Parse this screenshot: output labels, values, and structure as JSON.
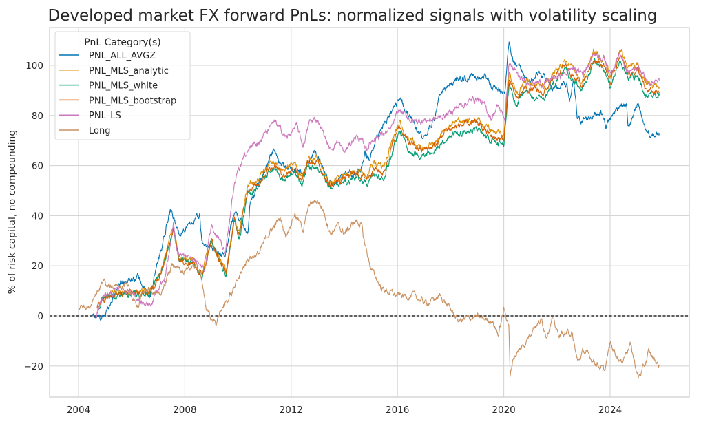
{
  "chart_data": {
    "type": "line",
    "title": "Developed market FX forward PnLs: normalized signals with volatility scaling",
    "xlabel": "",
    "ylabel": "% of risk capital, no compounding",
    "xlim": [
      2002.9,
      2027.0
    ],
    "ylim": [
      -32,
      116
    ],
    "x_ticks": [
      "2004",
      "2008",
      "2012",
      "2016",
      "2020",
      "2024"
    ],
    "y_ticks": [
      "−20",
      "0",
      "20",
      "40",
      "60",
      "80",
      "100"
    ],
    "grid": true,
    "reference_line": {
      "y": 0,
      "style": "dashed",
      "color": "#000000"
    },
    "legend": {
      "title": "PnL Category(s)",
      "placement": "top-left"
    },
    "series": [
      {
        "name": "PNL_ALL_AVGZ",
        "color": "#0173b2",
        "x": [
          2004.5,
          2004.93,
          2005.53,
          2006.23,
          2006.67,
          2007.45,
          2007.78,
          2008.56,
          2008.64,
          2009.52,
          2009.86,
          2010.37,
          2010.45,
          2011.33,
          2011.59,
          2012.45,
          2012.89,
          2013.48,
          2014.6,
          2014.78,
          2014.96,
          2015.22,
          2016.07,
          2016.41,
          2016.93,
          2017.37,
          2017.63,
          2018.33,
          2019.26,
          2019.62,
          2020.04,
          2020.2,
          2020.3,
          2020.65,
          2020.99,
          2021.33,
          2021.95,
          2022.37,
          2022.47,
          2022.63,
          2022.76,
          2022.99,
          2023.66,
          2023.84,
          2024.36,
          2024.62,
          2024.67,
          2025.06,
          2025.32,
          2025.53,
          2025.85
        ],
        "y": [
          0,
          -1,
          13,
          16,
          7,
          42,
          33,
          40,
          29,
          24,
          42,
          33,
          45,
          66,
          60,
          57,
          66,
          53,
          58,
          64,
          62,
          72,
          87,
          80,
          72,
          78,
          89,
          95,
          96,
          91,
          89,
          109,
          102,
          98,
          93,
          98,
          90,
          93,
          86,
          93,
          79,
          78,
          82,
          76,
          84.5,
          84,
          75,
          84,
          75,
          71,
          73
        ]
      },
      {
        "name": "PNL_MLS_analytic",
        "color": "#de8f05",
        "x": [
          2004.7,
          2004.93,
          2005.53,
          2006.23,
          2006.67,
          2007.1,
          2007.57,
          2007.78,
          2008.3,
          2008.64,
          2009.0,
          2009.41,
          2009.55,
          2009.86,
          2010.04,
          2010.37,
          2010.7,
          2011.15,
          2011.4,
          2011.75,
          2012.14,
          2012.4,
          2012.63,
          2013.0,
          2013.48,
          2014.0,
          2014.44,
          2014.85,
          2015.1,
          2015.48,
          2015.73,
          2016.07,
          2016.41,
          2016.93,
          2017.45,
          2017.8,
          2018.33,
          2019.0,
          2019.52,
          2020.0,
          2020.2,
          2020.47,
          2020.8,
          2021.5,
          2022.3,
          2022.9,
          2023.4,
          2023.84,
          2024.0,
          2024.36,
          2024.67,
          2025.06,
          2025.32,
          2025.85
        ],
        "y": [
          3.5,
          7.5,
          9.5,
          9.5,
          9.5,
          17.5,
          35.5,
          23.5,
          22.5,
          16.5,
          30.5,
          20.5,
          17.5,
          38.5,
          33.5,
          52.5,
          53.5,
          60.5,
          61.5,
          57.5,
          61.5,
          54.5,
          62.5,
          62.5,
          53.5,
          56.5,
          58.5,
          56.5,
          60.5,
          58.5,
          67.5,
          77.5,
          70.5,
          67.5,
          69.5,
          75.5,
          77.5,
          78.5,
          73.5,
          72.5,
          97.5,
          88.5,
          93.5,
          91.5,
          102.5,
          94.5,
          105.5,
          101.5,
          95.5,
          106.5,
          99.5,
          100.5,
          92.5,
          91.5
        ]
      },
      {
        "name": "PNL_MLS_white",
        "color": "#029e73",
        "x": [
          2004.7,
          2004.93,
          2005.53,
          2006.23,
          2006.67,
          2007.1,
          2007.57,
          2007.78,
          2008.3,
          2008.64,
          2009.0,
          2009.41,
          2009.55,
          2009.86,
          2010.04,
          2010.37,
          2010.7,
          2011.15,
          2011.4,
          2011.75,
          2012.14,
          2012.4,
          2012.63,
          2013.0,
          2013.48,
          2014.0,
          2014.44,
          2014.85,
          2015.1,
          2015.48,
          2015.73,
          2016.07,
          2016.41,
          2016.93,
          2017.45,
          2017.8,
          2018.33,
          2019.0,
          2019.52,
          2020.0,
          2020.2,
          2020.47,
          2020.8,
          2021.5,
          2022.3,
          2022.9,
          2023.4,
          2023.84,
          2024.0,
          2024.36,
          2024.67,
          2025.06,
          2025.32,
          2025.85
        ],
        "y": [
          2.5,
          6.5,
          8.5,
          8.5,
          8.5,
          16.5,
          34.5,
          22.5,
          21.5,
          15.5,
          29.5,
          19.5,
          16.5,
          37.5,
          30.5,
          49.5,
          50.5,
          57.5,
          58.5,
          54.5,
          58.5,
          51.5,
          59.5,
          59.5,
          50.5,
          53.5,
          55.5,
          53.5,
          56.5,
          54.5,
          63.5,
          73.5,
          66.5,
          63.5,
          65.5,
          71.5,
          73.5,
          74.5,
          69.5,
          68,
          93,
          84,
          89,
          87,
          98,
          90,
          101,
          97,
          91,
          102,
          95,
          96,
          88,
          88
        ]
      },
      {
        "name": "PNL_MLS_bootstrap",
        "color": "#d55e00",
        "x": [
          2004.7,
          2004.93,
          2005.53,
          2006.23,
          2006.67,
          2007.1,
          2007.57,
          2007.78,
          2008.3,
          2008.64,
          2009.0,
          2009.41,
          2009.55,
          2009.86,
          2010.04,
          2010.37,
          2010.7,
          2011.15,
          2011.4,
          2011.75,
          2012.14,
          2012.4,
          2012.63,
          2013.0,
          2013.48,
          2014.0,
          2014.44,
          2014.85,
          2015.1,
          2015.48,
          2015.73,
          2016.07,
          2016.41,
          2016.93,
          2017.45,
          2017.8,
          2018.33,
          2019.0,
          2019.52,
          2020.0,
          2020.2,
          2020.47,
          2020.8,
          2021.5,
          2022.3,
          2022.9,
          2023.4,
          2023.84,
          2024.0,
          2024.36,
          2024.67,
          2025.06,
          2025.32,
          2025.85
        ],
        "y": [
          3,
          7,
          9,
          9,
          9,
          17,
          35,
          23,
          22,
          16,
          30,
          20,
          17,
          38,
          32,
          51,
          52,
          59,
          60,
          56,
          60,
          53,
          61,
          61,
          52,
          55,
          57,
          55,
          59,
          57,
          66,
          76,
          69,
          66,
          68,
          74,
          76,
          77,
          72,
          70,
          95,
          86,
          91,
          89,
          100,
          92,
          103,
          99,
          93,
          104,
          97,
          98,
          90,
          89
        ]
      },
      {
        "name": "PNL_LS",
        "color": "#cc78bc",
        "x": [
          2004.67,
          2004.93,
          2005.53,
          2006.23,
          2006.67,
          2007.26,
          2007.57,
          2007.7,
          2008.3,
          2008.74,
          2009.0,
          2009.52,
          2009.86,
          2010.3,
          2010.8,
          2011.4,
          2011.85,
          2012.19,
          2012.45,
          2012.7,
          2013.0,
          2013.48,
          2013.74,
          2014.0,
          2014.44,
          2014.85,
          2015.1,
          2015.73,
          2016.07,
          2016.59,
          2017.45,
          2017.96,
          2018.33,
          2019.0,
          2019.26,
          2019.52,
          2019.78,
          2020.04,
          2020.2,
          2020.65,
          2021.5,
          2022.3,
          2022.55,
          2022.99,
          2023.4,
          2023.77,
          2024.0,
          2024.36,
          2024.62,
          2025.06,
          2025.4,
          2025.85
        ],
        "y": [
          0,
          8,
          11,
          7,
          4,
          16,
          37,
          25,
          23,
          18,
          36,
          26,
          53,
          65,
          70,
          77,
          71,
          76,
          68,
          77.6,
          78.6,
          66,
          70,
          65,
          72,
          67,
          71,
          74,
          82,
          77.6,
          78.6,
          81,
          84,
          87,
          84,
          79,
          83.7,
          79,
          101,
          94,
          93,
          96.6,
          99,
          97,
          105,
          103,
          97,
          105,
          97,
          99,
          94,
          94
        ]
      },
      {
        "name": "Long",
        "color": "#ca9161",
        "x": [
          2004.03,
          2004.5,
          2004.93,
          2005.37,
          2005.8,
          2006.23,
          2006.5,
          2007.1,
          2007.52,
          2007.96,
          2008.3,
          2008.56,
          2008.82,
          2009.16,
          2009.52,
          2009.86,
          2010.37,
          2010.8,
          2011.15,
          2011.59,
          2011.8,
          2012.13,
          2012.45,
          2012.7,
          2013.0,
          2013.22,
          2013.48,
          2013.74,
          2014.0,
          2014.44,
          2014.65,
          2014.72,
          2015.0,
          2015.4,
          2016.0,
          2016.6,
          2017.1,
          2017.6,
          2017.83,
          2018.3,
          2018.92,
          2019.57,
          2019.8,
          2020.0,
          2020.19,
          2020.24,
          2020.35,
          2020.8,
          2021.13,
          2021.43,
          2021.6,
          2021.83,
          2022.05,
          2022.55,
          2022.78,
          2023.0,
          2023.8,
          2024.0,
          2024.42,
          2024.75,
          2025.06,
          2025.3,
          2025.45,
          2025.68,
          2025.85
        ],
        "y": [
          2.5,
          4,
          14,
          11,
          12.6,
          4,
          11,
          9,
          20,
          18,
          20,
          18,
          1.7,
          -3,
          5,
          11,
          23,
          25,
          33,
          39,
          32,
          41,
          34.7,
          44.6,
          46,
          42,
          33,
          36,
          33,
          38,
          36,
          31,
          19,
          11,
          8,
          8,
          5,
          8,
          5,
          -2,
          -0.3,
          -2,
          -7.5,
          2.5,
          -3,
          -24.7,
          -16.6,
          -11,
          -4,
          -2,
          -7.5,
          -1,
          -7.5,
          -6.6,
          -18.6,
          -14,
          -22,
          -11,
          -18.6,
          -11,
          -24.7,
          -20,
          -14.6,
          -17.5,
          -20
        ]
      }
    ]
  }
}
